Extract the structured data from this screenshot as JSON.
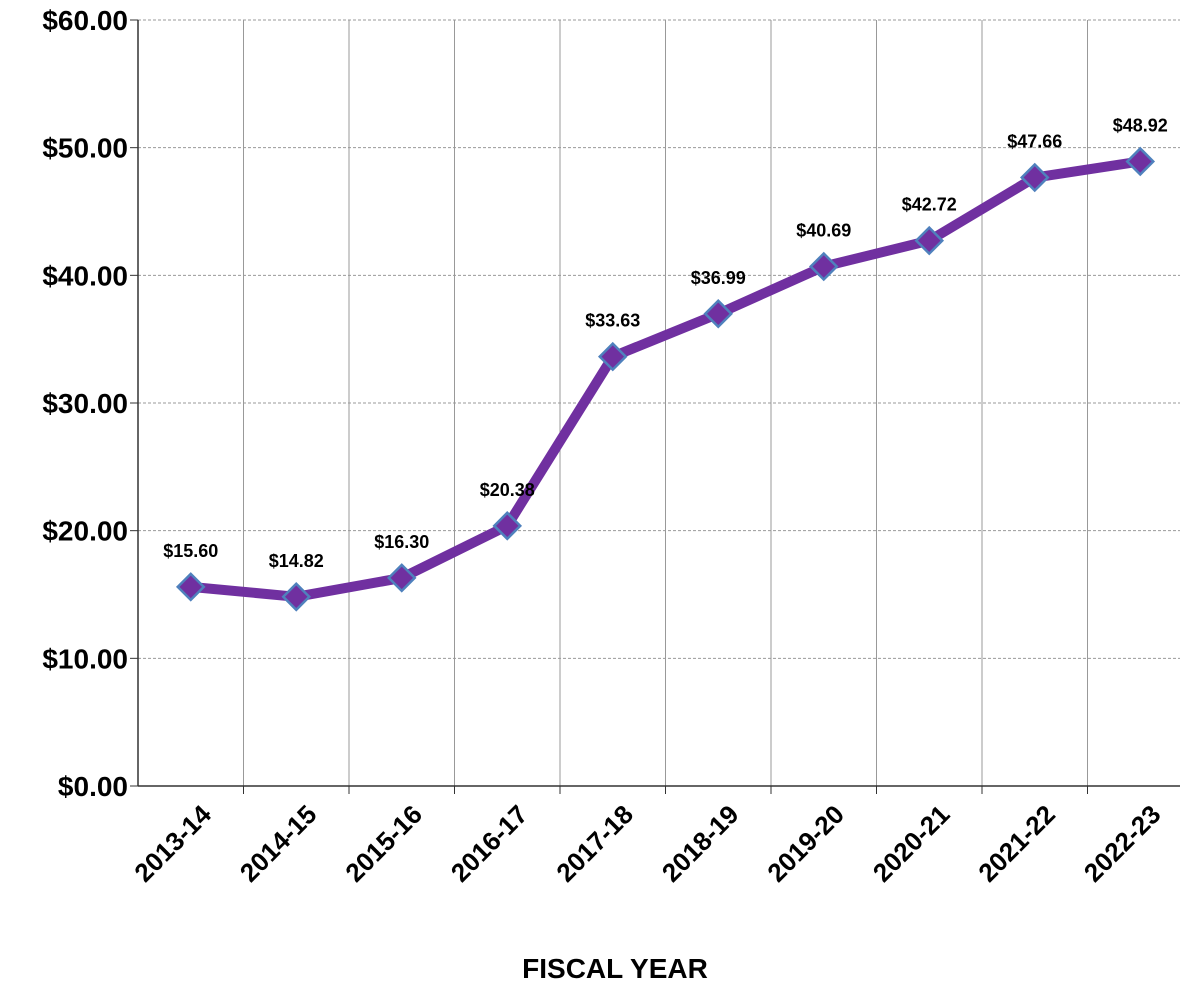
{
  "chart_data": {
    "type": "line",
    "x_label": "FISCAL YEAR",
    "categories": [
      "2013-14",
      "2014-15",
      "2015-16",
      "2016-17",
      "2017-18",
      "2018-19",
      "2019-20",
      "2020-21",
      "2021-22",
      "2022-23"
    ],
    "series": [
      {
        "name": "Cost",
        "color": "#7030a0",
        "marker_edge": "#4f81bd",
        "values": [
          15.6,
          14.82,
          16.3,
          20.38,
          33.63,
          36.99,
          40.69,
          42.72,
          47.66,
          48.92
        ],
        "value_labels": [
          "$15.60",
          "$14.82",
          "$16.30",
          "$20.38",
          "$33.63",
          "$36.99",
          "$40.69",
          "$42.72",
          "$47.66",
          "$48.92"
        ]
      }
    ],
    "ylim": [
      0,
      60
    ],
    "yticks": [
      {
        "value": 0,
        "label": "$0.00"
      },
      {
        "value": 10,
        "label": "$10.00"
      },
      {
        "value": 20,
        "label": "$20.00"
      },
      {
        "value": 30,
        "label": "$30.00"
      },
      {
        "value": 40,
        "label": "$40.00"
      },
      {
        "value": 50,
        "label": "$50.00"
      },
      {
        "value": 60,
        "label": "$60.00"
      }
    ],
    "grid": true,
    "legend": false
  }
}
